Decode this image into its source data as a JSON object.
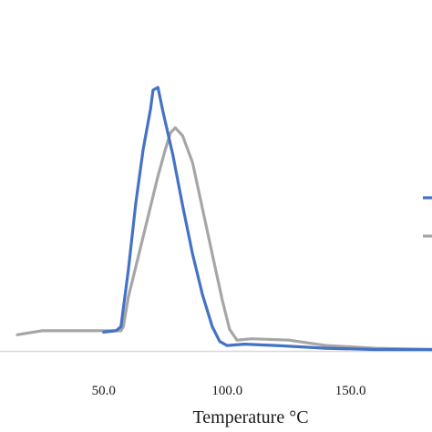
{
  "chart_data": {
    "type": "line",
    "title": "",
    "xlabel": "Temperature °C",
    "ylabel": "",
    "xlim": [
      8,
      183
    ],
    "ylim": [
      0,
      1
    ],
    "x_ticks": [
      50.0,
      100.0,
      150.0
    ],
    "x_tick_labels": [
      "50.0",
      "100.0",
      "150.0"
    ],
    "grid": false,
    "legend": "right (partially cut off)",
    "series": [
      {
        "color": "#4472c4",
        "points": [
          [
            50.0,
            0.07
          ],
          [
            55.0,
            0.075
          ],
          [
            57.0,
            0.09
          ],
          [
            60.0,
            0.3
          ],
          [
            63.0,
            0.55
          ],
          [
            66.0,
            0.75
          ],
          [
            69.0,
            0.9
          ],
          [
            70.0,
            0.97
          ],
          [
            72.0,
            0.98
          ],
          [
            74.0,
            0.89
          ],
          [
            78.0,
            0.73
          ],
          [
            82.0,
            0.54
          ],
          [
            86.0,
            0.36
          ],
          [
            90.0,
            0.21
          ],
          [
            94.0,
            0.09
          ],
          [
            97.0,
            0.035
          ],
          [
            100.0,
            0.02
          ],
          [
            107.0,
            0.025
          ],
          [
            120.0,
            0.02
          ],
          [
            140.0,
            0.01
          ],
          [
            160.0,
            0.005
          ],
          [
            183.0,
            0.005
          ]
        ]
      },
      {
        "color": "#a6a6a6",
        "points": [
          [
            15.0,
            0.06
          ],
          [
            25.0,
            0.075
          ],
          [
            50.0,
            0.075
          ],
          [
            57.0,
            0.075
          ],
          [
            58.0,
            0.09
          ],
          [
            60.0,
            0.2
          ],
          [
            64.0,
            0.35
          ],
          [
            68.0,
            0.5
          ],
          [
            72.0,
            0.65
          ],
          [
            75.0,
            0.75
          ],
          [
            77.0,
            0.81
          ],
          [
            79.0,
            0.83
          ],
          [
            82.0,
            0.8
          ],
          [
            86.0,
            0.7
          ],
          [
            90.0,
            0.53
          ],
          [
            94.0,
            0.36
          ],
          [
            98.0,
            0.19
          ],
          [
            101.0,
            0.08
          ],
          [
            104.0,
            0.04
          ],
          [
            110.0,
            0.045
          ],
          [
            125.0,
            0.04
          ],
          [
            140.0,
            0.02
          ],
          [
            160.0,
            0.01
          ],
          [
            183.0,
            0.005
          ]
        ]
      }
    ]
  }
}
